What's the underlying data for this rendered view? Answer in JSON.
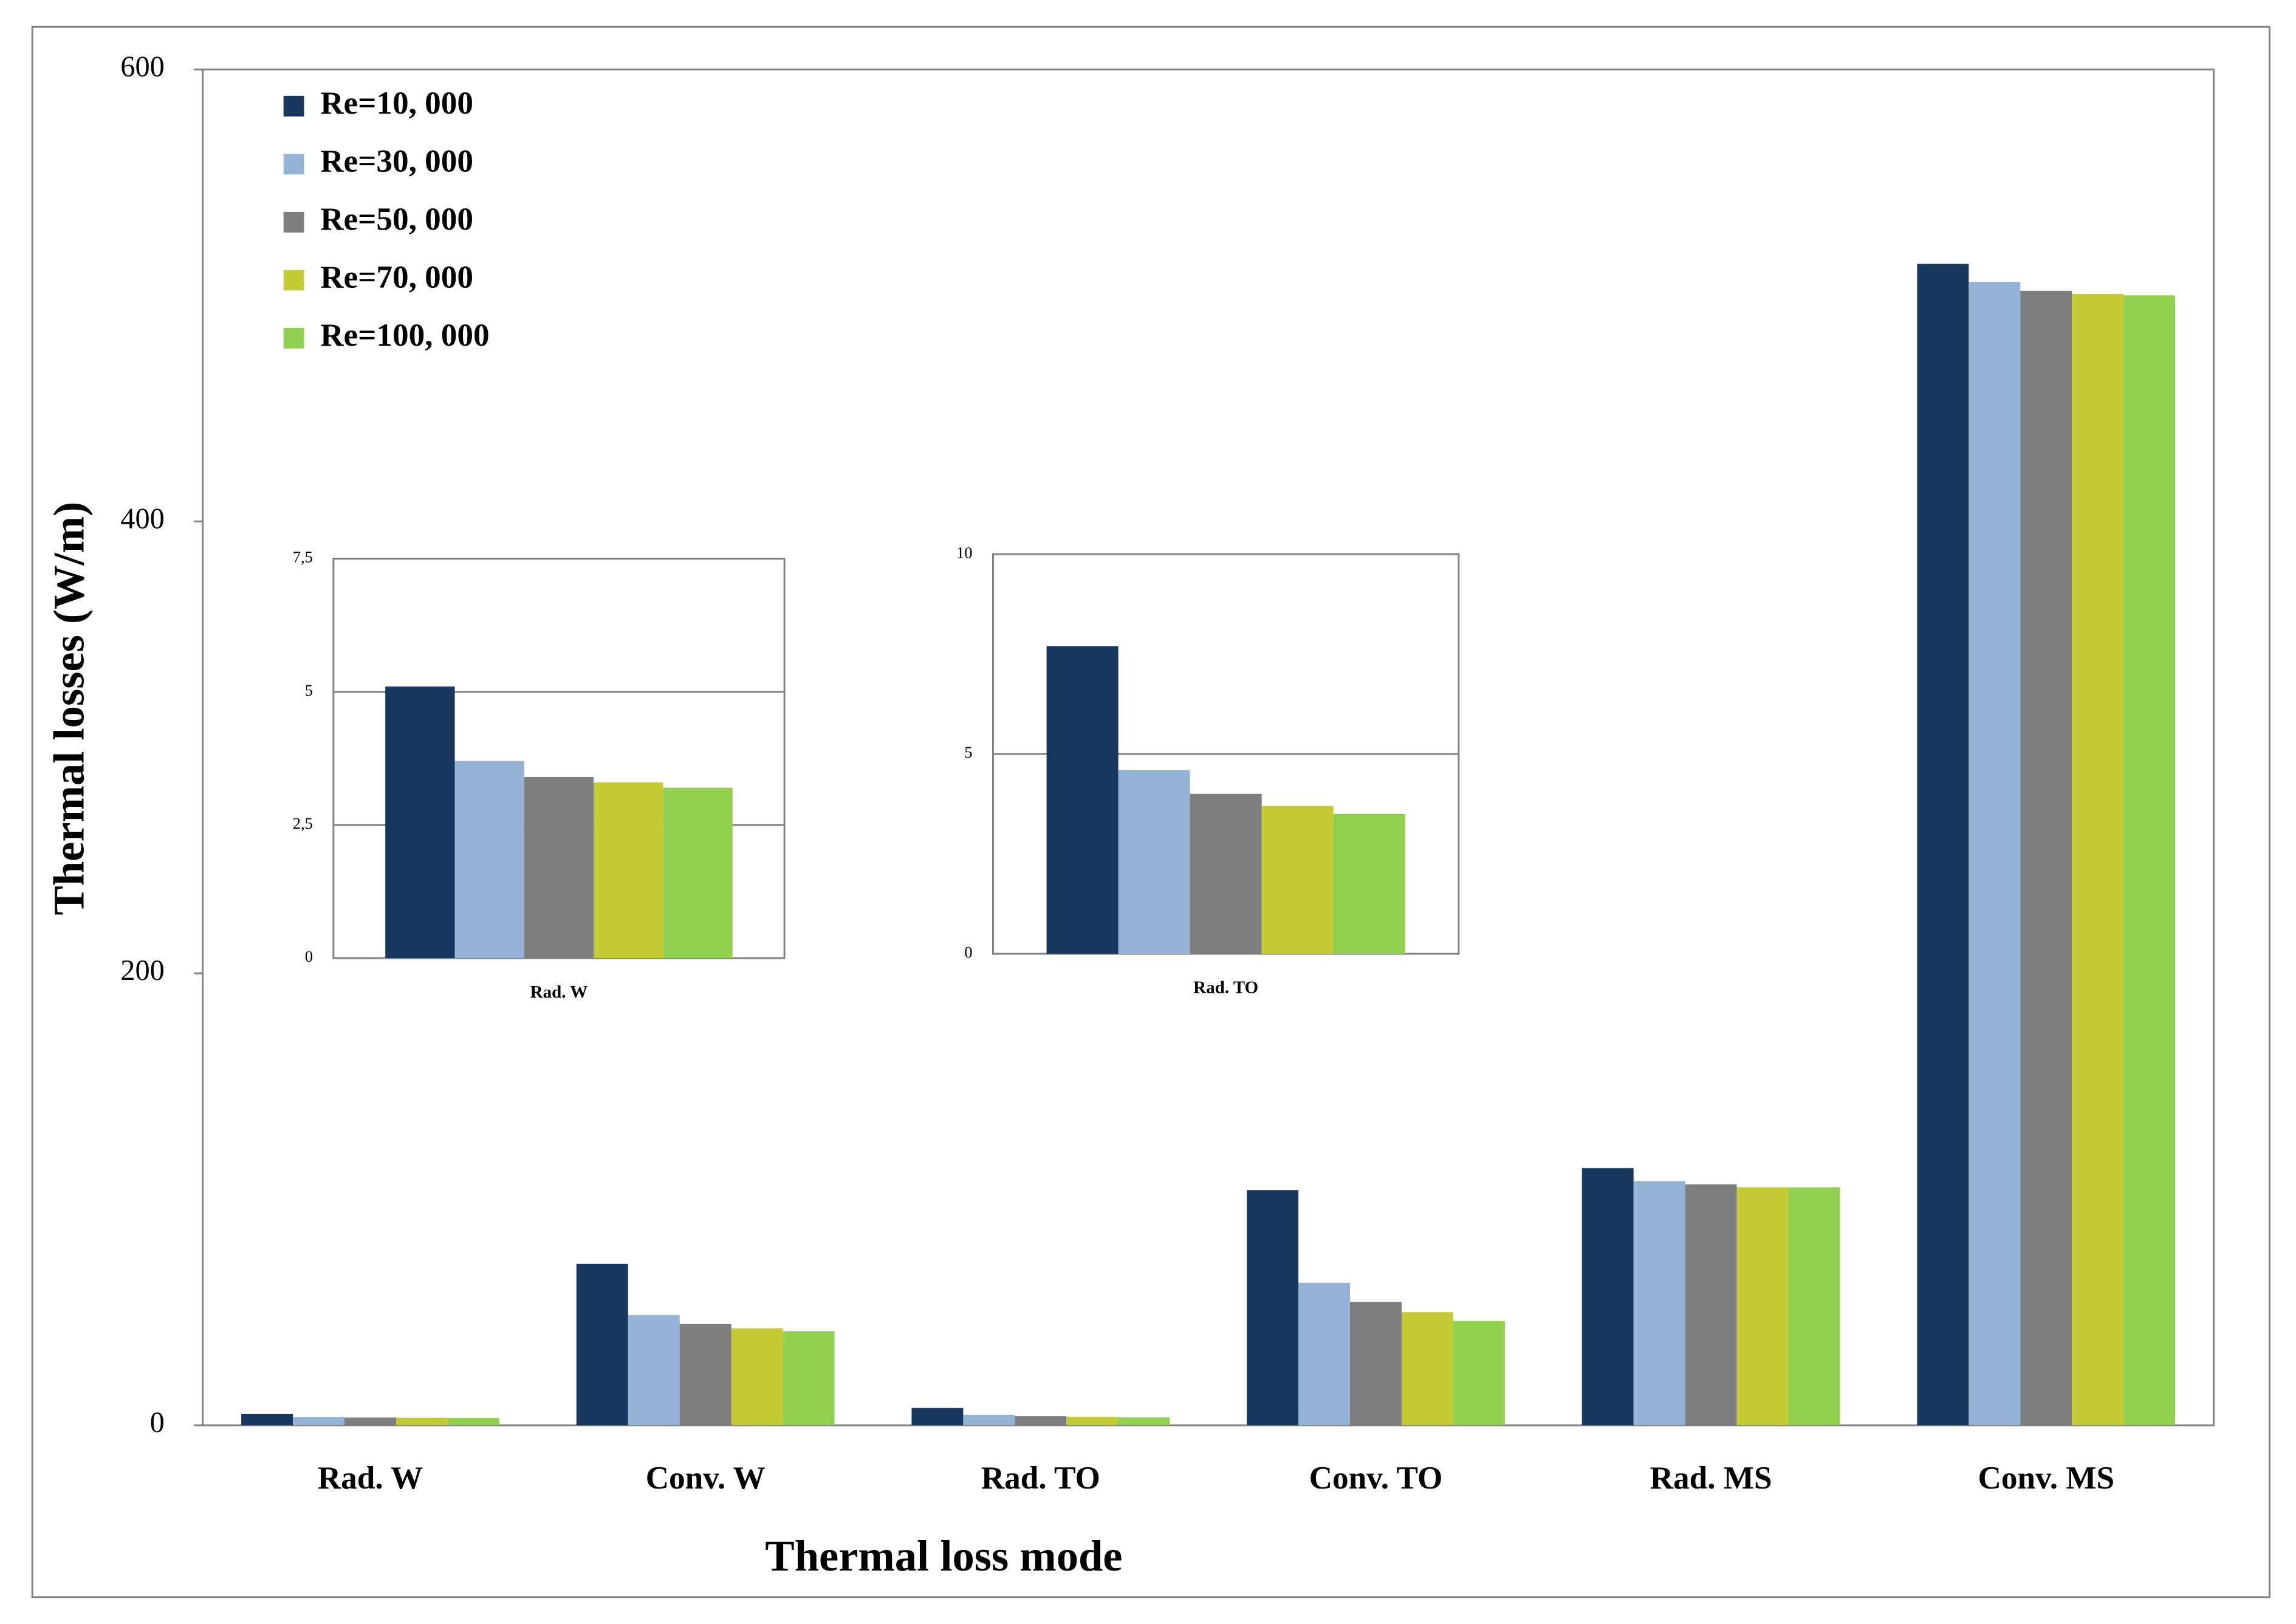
{
  "chart_data": [
    {
      "type": "bar",
      "xlabel": "Thermal loss mode",
      "ylabel": "Thermal losses (W/m)",
      "categories": [
        "Rad. W",
        "Conv. W",
        "Rad. TO",
        "Conv. TO",
        "Rad. MS",
        "Conv. MS"
      ],
      "series": [
        {
          "name": "Re=10, 000",
          "color": "#17375e",
          "values": [
            5.1,
            71.5,
            7.7,
            104,
            113.8,
            514
          ]
        },
        {
          "name": "Re=30, 000",
          "color": "#95b3d7",
          "values": [
            3.7,
            48.8,
            4.6,
            63,
            108,
            506
          ]
        },
        {
          "name": "Re=50, 000",
          "color": "#7f7f7f",
          "values": [
            3.4,
            44.9,
            4.0,
            54.6,
            106.6,
            502
          ]
        },
        {
          "name": "Re=70, 000",
          "color": "#c4cc35",
          "values": [
            3.3,
            42.9,
            3.7,
            50,
            105.3,
            500.6
          ]
        },
        {
          "name": "Re=100, 000",
          "color": "#92d050",
          "values": [
            3.2,
            41.6,
            3.5,
            46.2,
            105.3,
            500
          ]
        }
      ],
      "ylim": [
        0,
        600
      ],
      "yticks": [
        0,
        200,
        400,
        600
      ],
      "grid": false,
      "legend": "upper left"
    },
    {
      "type": "bar",
      "categories": [
        "Rad. W"
      ],
      "series": [
        {
          "color": "#17375e",
          "values": [
            5.1
          ]
        },
        {
          "color": "#95b3d7",
          "values": [
            3.7
          ]
        },
        {
          "color": "#7f7f7f",
          "values": [
            3.4
          ]
        },
        {
          "color": "#c4cc35",
          "values": [
            3.3
          ]
        },
        {
          "color": "#92d050",
          "values": [
            3.2
          ]
        }
      ],
      "ylim": [
        0,
        7.5
      ],
      "yticks": [
        0,
        {
          "value": 2.5,
          "label": "2,5"
        },
        5,
        {
          "value": 7.5,
          "label": "7,5"
        }
      ],
      "grid": true
    },
    {
      "type": "bar",
      "categories": [
        "Rad. TO"
      ],
      "series": [
        {
          "color": "#17375e",
          "values": [
            7.7
          ]
        },
        {
          "color": "#95b3d7",
          "values": [
            4.6
          ]
        },
        {
          "color": "#7f7f7f",
          "values": [
            4.0
          ]
        },
        {
          "color": "#c4cc35",
          "values": [
            3.7
          ]
        },
        {
          "color": "#92d050",
          "values": [
            3.5
          ]
        }
      ],
      "ylim": [
        0,
        10
      ],
      "yticks": [
        0,
        5,
        10
      ],
      "grid": true
    }
  ]
}
